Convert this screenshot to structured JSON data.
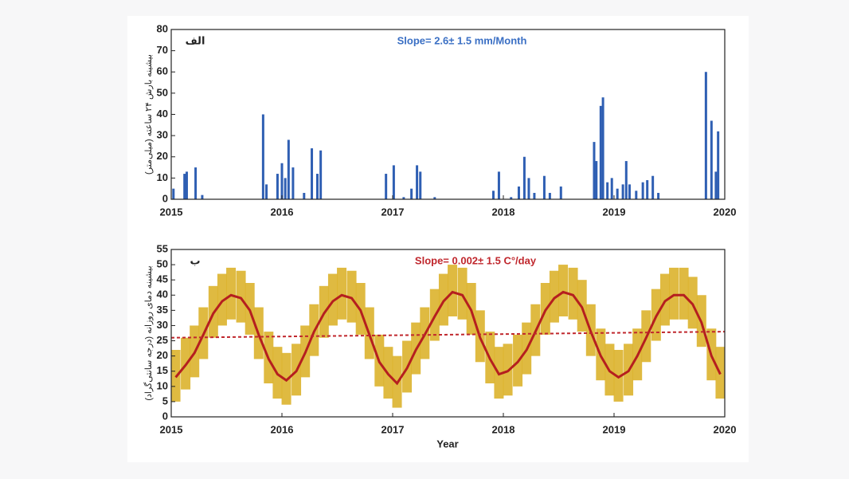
{
  "chart_data": [
    {
      "type": "bar",
      "title": "Slope= 2.6± 1.5 mm/Month",
      "title_color": "#3a6fc4",
      "panel_label": "الف",
      "ylabel": "بیشینه بارش ۲۴ ساعته (میلی‌متر)",
      "color": "#2f5fb3",
      "x": [
        2015.02,
        2015.12,
        2015.14,
        2015.22,
        2015.28,
        2015.83,
        2015.86,
        2015.96,
        2016.0,
        2016.03,
        2016.06,
        2016.1,
        2016.2,
        2016.27,
        2016.32,
        2016.35,
        2016.94,
        2017.01,
        2017.1,
        2017.17,
        2017.22,
        2017.25,
        2017.38,
        2017.91,
        2017.96,
        2018.07,
        2018.14,
        2018.19,
        2018.23,
        2018.28,
        2018.37,
        2018.42,
        2018.52,
        2018.82,
        2018.84,
        2018.88,
        2018.9,
        2018.94,
        2018.98,
        2019.03,
        2019.08,
        2019.11,
        2019.14,
        2019.2,
        2019.26,
        2019.3,
        2019.35,
        2019.4,
        2019.83,
        2019.88,
        2019.92,
        2019.94
      ],
      "values": [
        5,
        12,
        13,
        15,
        2,
        40,
        7,
        12,
        17,
        10,
        28,
        15,
        3,
        24,
        12,
        23,
        12,
        16,
        1,
        5,
        16,
        13,
        1,
        4,
        13,
        1,
        6,
        20,
        10,
        3,
        11,
        3,
        6,
        27,
        18,
        44,
        48,
        8,
        10,
        5,
        7,
        18,
        7,
        4,
        8,
        9,
        11,
        3,
        60,
        37,
        13,
        32
      ],
      "xlim": [
        2015,
        2020
      ],
      "xticks": [
        2015,
        2016,
        2017,
        2018,
        2019,
        2020
      ],
      "ylim": [
        0,
        80
      ],
      "yticks": [
        0,
        10,
        20,
        30,
        40,
        50,
        60,
        70,
        80
      ]
    },
    {
      "type": "line",
      "title": "Slope= 0.002± 1.5 C°/day",
      "title_color": "#c0272d",
      "panel_label": "ب",
      "ylabel": "بیشینه دمای روزانه (درجه سانتی‌گراد)",
      "xlabel": "Year",
      "band": {
        "color": "#dcb22c",
        "x": [
          2015.04,
          2015.13,
          2015.21,
          2015.29,
          2015.38,
          2015.46,
          2015.54,
          2015.63,
          2015.71,
          2015.79,
          2015.88,
          2015.96,
          2016.04,
          2016.13,
          2016.21,
          2016.29,
          2016.38,
          2016.46,
          2016.54,
          2016.63,
          2016.71,
          2016.79,
          2016.88,
          2016.96,
          2017.04,
          2017.13,
          2017.21,
          2017.29,
          2017.38,
          2017.46,
          2017.54,
          2017.63,
          2017.71,
          2017.79,
          2017.88,
          2017.96,
          2018.04,
          2018.13,
          2018.21,
          2018.29,
          2018.38,
          2018.46,
          2018.54,
          2018.63,
          2018.71,
          2018.79,
          2018.88,
          2018.96,
          2019.04,
          2019.13,
          2019.21,
          2019.29,
          2019.38,
          2019.46,
          2019.54,
          2019.63,
          2019.71,
          2019.79,
          2019.88,
          2019.96
        ],
        "low": [
          5,
          9,
          13,
          19,
          26,
          30,
          32,
          31,
          27,
          19,
          11,
          6,
          4,
          7,
          13,
          20,
          26,
          30,
          32,
          31,
          27,
          19,
          10,
          6,
          3,
          8,
          14,
          19,
          25,
          30,
          33,
          32,
          27,
          18,
          11,
          6,
          7,
          10,
          14,
          20,
          27,
          31,
          33,
          32,
          28,
          20,
          12,
          7,
          5,
          7,
          12,
          18,
          25,
          30,
          32,
          32,
          29,
          23,
          12,
          6
        ],
        "high": [
          22,
          26,
          30,
          36,
          43,
          47,
          49,
          48,
          44,
          36,
          28,
          23,
          21,
          24,
          30,
          37,
          43,
          47,
          49,
          48,
          44,
          36,
          27,
          23,
          20,
          25,
          31,
          36,
          42,
          47,
          50,
          49,
          44,
          35,
          28,
          23,
          24,
          27,
          31,
          37,
          44,
          48,
          50,
          49,
          45,
          37,
          29,
          24,
          22,
          24,
          29,
          35,
          42,
          47,
          49,
          49,
          46,
          40,
          29,
          23
        ]
      },
      "series": [
        {
          "color": "#b51f1f",
          "style": "solid",
          "x": [
            2015.04,
            2015.13,
            2015.21,
            2015.29,
            2015.38,
            2015.46,
            2015.54,
            2015.63,
            2015.71,
            2015.79,
            2015.88,
            2015.96,
            2016.04,
            2016.13,
            2016.21,
            2016.29,
            2016.38,
            2016.46,
            2016.54,
            2016.63,
            2016.71,
            2016.79,
            2016.88,
            2016.96,
            2017.04,
            2017.13,
            2017.21,
            2017.29,
            2017.38,
            2017.46,
            2017.54,
            2017.63,
            2017.71,
            2017.79,
            2017.88,
            2017.96,
            2018.04,
            2018.13,
            2018.21,
            2018.29,
            2018.38,
            2018.46,
            2018.54,
            2018.63,
            2018.71,
            2018.79,
            2018.88,
            2018.96,
            2019.04,
            2019.13,
            2019.21,
            2019.29,
            2019.38,
            2019.46,
            2019.54,
            2019.63,
            2019.71,
            2019.79,
            2019.88,
            2019.96
          ],
          "values": [
            13,
            17,
            21,
            27,
            34,
            38,
            40,
            39,
            35,
            27,
            19,
            14,
            12,
            15,
            21,
            28,
            34,
            38,
            40,
            39,
            35,
            27,
            18,
            14,
            11,
            16,
            22,
            27,
            33,
            38,
            41,
            40,
            35,
            26,
            19,
            14,
            15,
            18,
            22,
            28,
            35,
            39,
            41,
            40,
            36,
            28,
            20,
            15,
            13,
            15,
            20,
            26,
            33,
            38,
            40,
            40,
            37,
            31,
            20,
            14
          ]
        },
        {
          "color": "#c0272d",
          "style": "dashed",
          "x": [
            2015,
            2020
          ],
          "values": [
            26,
            28
          ]
        }
      ],
      "xlim": [
        2015,
        2020
      ],
      "xticks": [
        2015,
        2016,
        2017,
        2018,
        2019,
        2020
      ],
      "ylim": [
        0,
        55
      ],
      "yticks": [
        0,
        5,
        10,
        15,
        20,
        25,
        30,
        35,
        40,
        45,
        50,
        55
      ]
    }
  ]
}
